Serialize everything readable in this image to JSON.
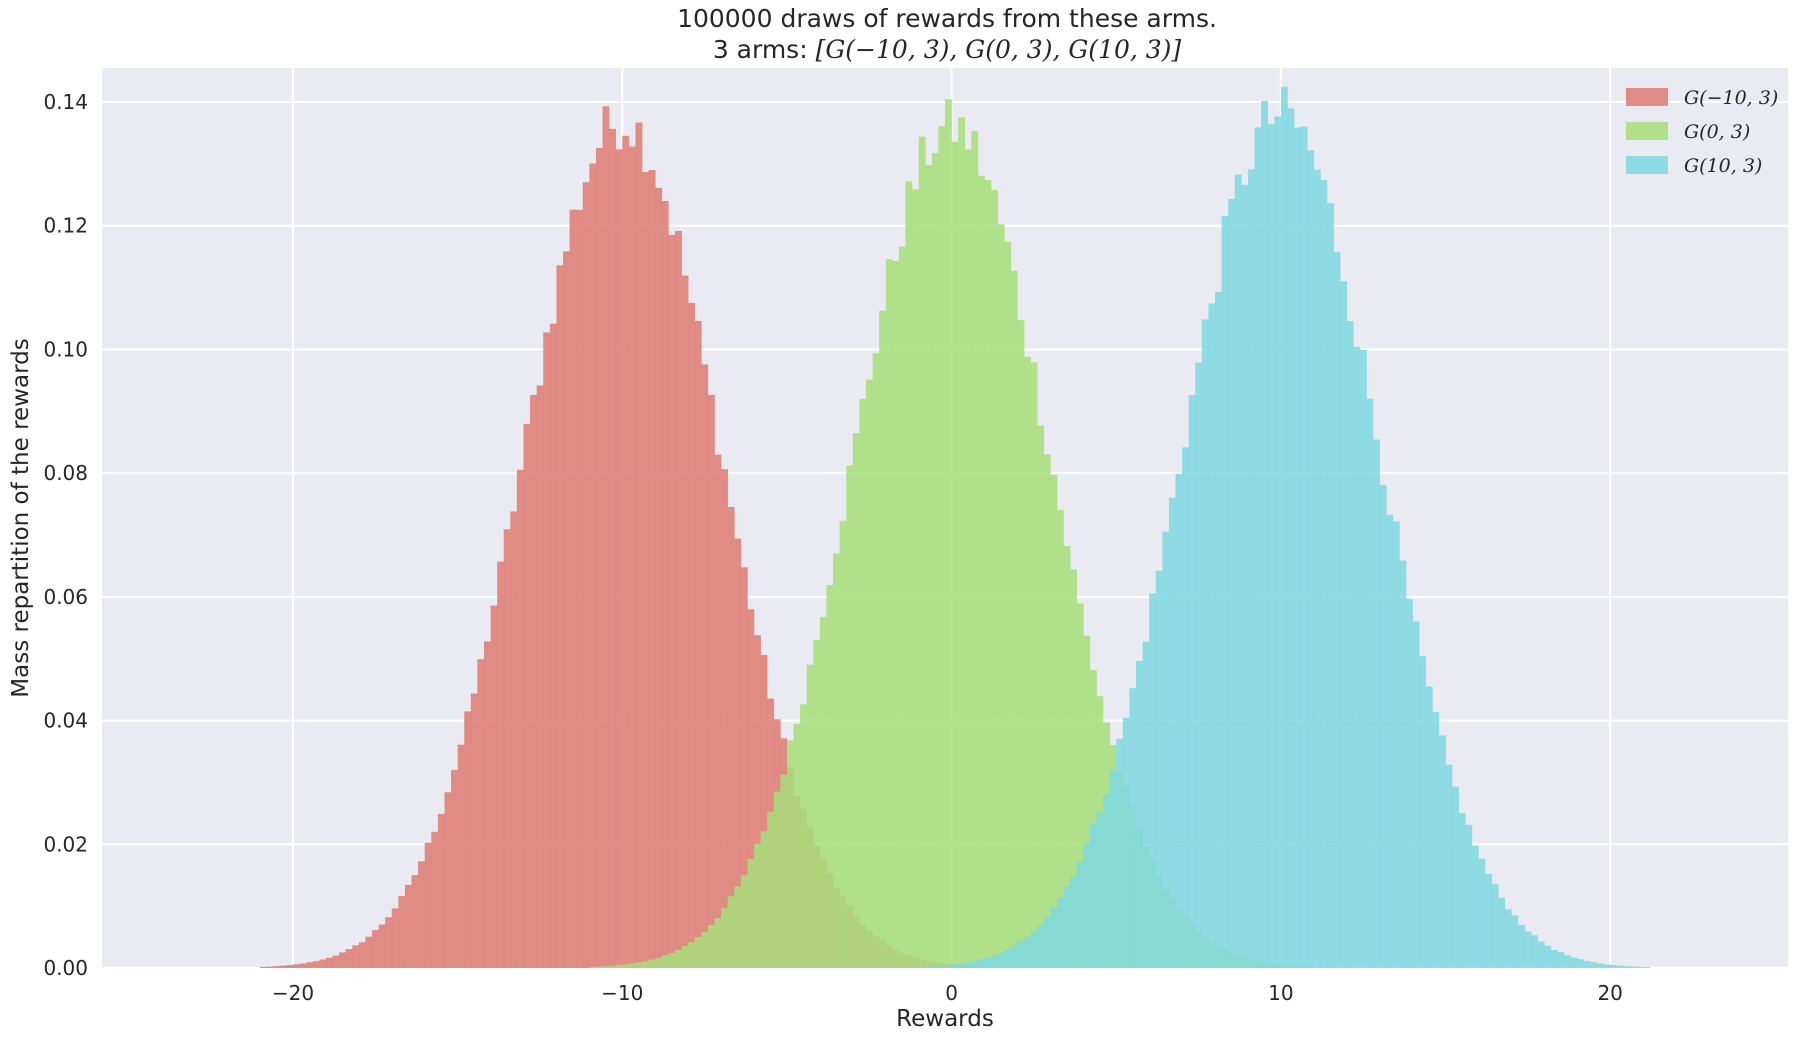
{
  "chart_data": {
    "type": "histogram",
    "title": {
      "line1": "100000 draws of rewards from these arms.",
      "line2_prefix": "3 arms: ",
      "line2_math": "[G(−10, 3), G(0, 3), G(10, 3)]"
    },
    "xlabel": "Rewards",
    "ylabel": "Mass repartition of the rewards",
    "xlim": [
      -25.8,
      25.4
    ],
    "ylim": [
      0,
      0.1455
    ],
    "xticks": [
      -20,
      -10,
      0,
      10,
      20
    ],
    "xtick_labels": [
      "−20",
      "−10",
      "0",
      "10",
      "20"
    ],
    "yticks": [
      0,
      0.02,
      0.04,
      0.06,
      0.08,
      0.1,
      0.12,
      0.14
    ],
    "ytick_labels": [
      "0.00",
      "0.02",
      "0.04",
      "0.06",
      "0.08",
      "0.10",
      "0.12",
      "0.14"
    ],
    "grid": true,
    "legend_position": "top-right",
    "bin_width": 0.2,
    "series": [
      {
        "name": "G(−10, 3)",
        "color": "#e0827c",
        "mean": -10,
        "std": 3,
        "peak": 0.137,
        "range": [
          -22,
          2
        ],
        "opacity": 0.92
      },
      {
        "name": "G(0, 3)",
        "color": "#a7de79",
        "mean": 0,
        "std": 3,
        "peak": 0.136,
        "range": [
          -12,
          12
        ],
        "opacity": 0.85
      },
      {
        "name": "G(10, 3)",
        "color": "#7ed8e0",
        "mean": 10,
        "std": 3,
        "peak": 0.138,
        "range": [
          -2,
          22
        ],
        "opacity": 0.85
      }
    ]
  }
}
